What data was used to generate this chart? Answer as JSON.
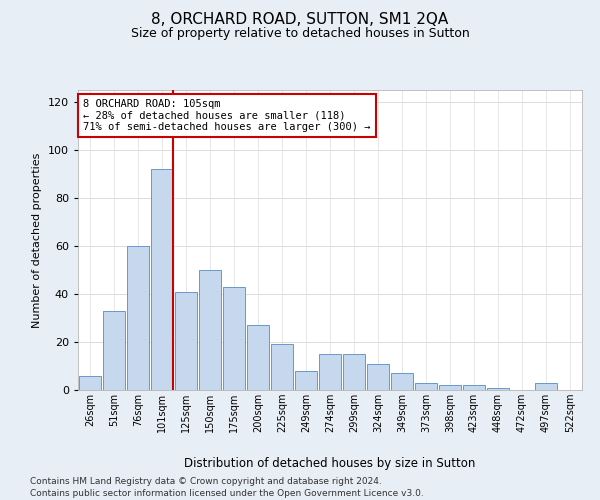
{
  "title": "8, ORCHARD ROAD, SUTTON, SM1 2QA",
  "subtitle": "Size of property relative to detached houses in Sutton",
  "xlabel": "Distribution of detached houses by size in Sutton",
  "ylabel": "Number of detached properties",
  "categories": [
    "26sqm",
    "51sqm",
    "76sqm",
    "101sqm",
    "125sqm",
    "150sqm",
    "175sqm",
    "200sqm",
    "225sqm",
    "249sqm",
    "274sqm",
    "299sqm",
    "324sqm",
    "349sqm",
    "373sqm",
    "398sqm",
    "423sqm",
    "448sqm",
    "472sqm",
    "497sqm",
    "522sqm"
  ],
  "values": [
    6,
    33,
    60,
    92,
    41,
    50,
    43,
    27,
    19,
    8,
    15,
    15,
    11,
    7,
    3,
    2,
    2,
    1,
    0,
    3,
    0
  ],
  "bar_color": "#c5d8ee",
  "bar_edge_color": "#6699cc",
  "annotation_text_line1": "8 ORCHARD ROAD: 105sqm",
  "annotation_text_line2": "← 28% of detached houses are smaller (118)",
  "annotation_text_line3": "71% of semi-detached houses are larger (300) →",
  "annotation_box_color": "#ffffff",
  "annotation_box_edge": "#cc0000",
  "vline_color": "#cc0000",
  "ylim": [
    0,
    125
  ],
  "yticks": [
    0,
    20,
    40,
    60,
    80,
    100,
    120
  ],
  "grid_color": "#dddddd",
  "plot_bg_color": "#ffffff",
  "fig_bg_color": "#e8eef5",
  "footer_line1": "Contains HM Land Registry data © Crown copyright and database right 2024.",
  "footer_line2": "Contains public sector information licensed under the Open Government Licence v3.0."
}
